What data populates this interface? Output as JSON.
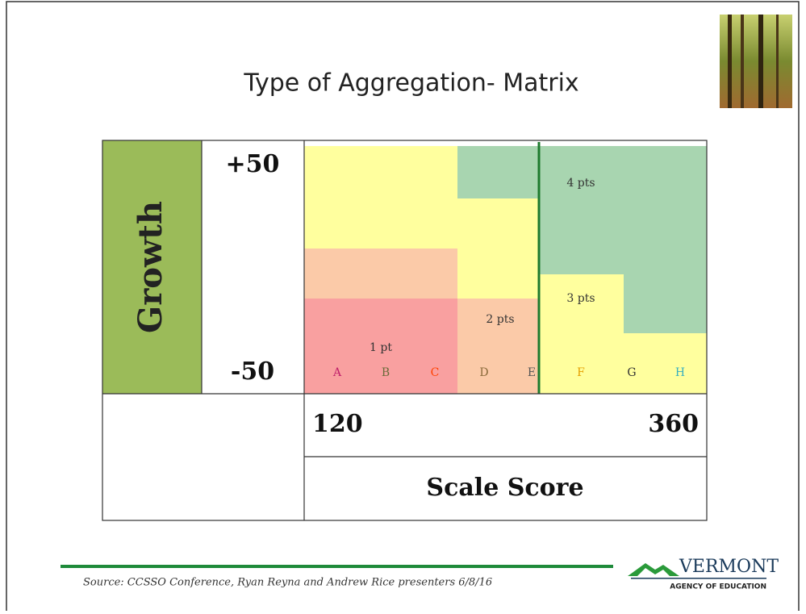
{
  "slide": {
    "title": "Type of Aggregation- Matrix",
    "matrix": {
      "y_label": "Growth",
      "y_top": "+50",
      "y_bottom": "-50",
      "x_min": "120",
      "x_max": "360",
      "x_label": "Scale Score",
      "regions": [
        "1 pt",
        "2 pts",
        "3 pts",
        "4 pts"
      ],
      "columns": [
        "A",
        "B",
        "C",
        "D",
        "E",
        "F",
        "G",
        "H"
      ]
    },
    "footer": {
      "source": "Source:  CCSSO Conference,  Ryan Reyna and Andrew Rice presenters 6/8/16",
      "logo_name": "VERMONT",
      "logo_sub": "AGENCY OF EDUCATION"
    }
  }
}
